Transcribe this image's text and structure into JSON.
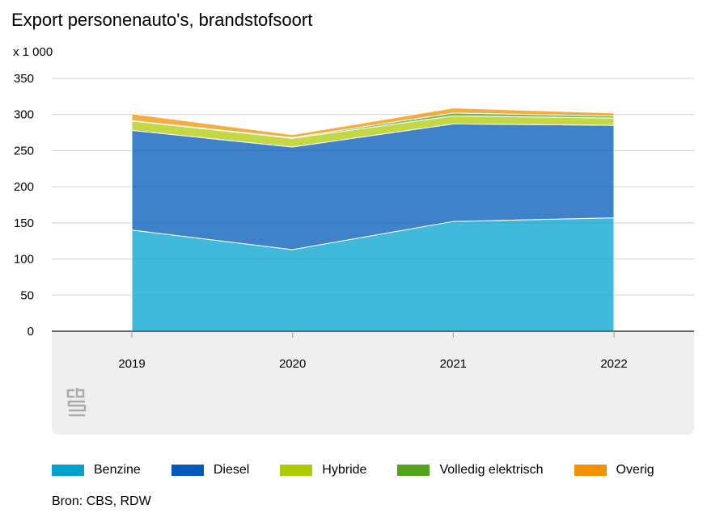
{
  "chart_data": {
    "type": "area",
    "stacked": true,
    "title": "Export personenauto's, brandstofsoort",
    "ylabel": "x 1 000",
    "xlabel": "",
    "ylim": [
      0,
      350
    ],
    "yticks": [
      0,
      50,
      100,
      150,
      200,
      250,
      300,
      350
    ],
    "categories": [
      "2019",
      "2020",
      "2021",
      "2022"
    ],
    "series": [
      {
        "name": "Benzine",
        "color": "#00a1cd",
        "values": [
          140,
          113,
          152,
          157
        ]
      },
      {
        "name": "Diesel",
        "color": "#0058b8",
        "values": [
          138,
          142,
          135,
          128
        ]
      },
      {
        "name": "Hybride",
        "color": "#afcb05",
        "values": [
          13,
          12,
          11,
          10
        ]
      },
      {
        "name": "Volledig elektrisch",
        "color": "#53a31d",
        "values": [
          0.5,
          1,
          4,
          3
        ]
      },
      {
        "name": "Overig",
        "color": "#f39200",
        "values": [
          9.5,
          4,
          7,
          4
        ]
      }
    ],
    "grid": true,
    "legend": "bottom"
  },
  "source": "Bron: CBS, RDW",
  "logo": "cbs"
}
